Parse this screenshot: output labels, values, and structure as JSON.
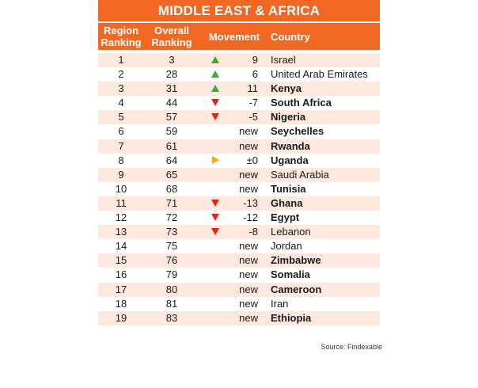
{
  "title": "MIDDLE EAST & AFRICA",
  "headers": {
    "region": "Region Ranking",
    "overall": "Overall Ranking",
    "movement": "Movement",
    "country": "Country"
  },
  "colors": {
    "accent": "#f26722",
    "row_shade": "#fde8dd",
    "up": "#3aaa35",
    "down": "#e2231a",
    "neutral": "#f5a623"
  },
  "rows": [
    {
      "region": "1",
      "overall": "3",
      "icon": "up",
      "movement": "9",
      "country": "Israel",
      "bold": false
    },
    {
      "region": "2",
      "overall": "28",
      "icon": "up",
      "movement": "6",
      "country": "United Arab Emirates",
      "bold": false
    },
    {
      "region": "3",
      "overall": "31",
      "icon": "up",
      "movement": "11",
      "country": "Kenya",
      "bold": true
    },
    {
      "region": "4",
      "overall": "44",
      "icon": "down",
      "movement": "-7",
      "country": "South Africa",
      "bold": true
    },
    {
      "region": "5",
      "overall": "57",
      "icon": "down",
      "movement": "-5",
      "country": "Nigeria",
      "bold": true
    },
    {
      "region": "6",
      "overall": "59",
      "icon": "",
      "movement": "new",
      "country": "Seychelles",
      "bold": true
    },
    {
      "region": "7",
      "overall": "61",
      "icon": "",
      "movement": "new",
      "country": "Rwanda",
      "bold": true
    },
    {
      "region": "8",
      "overall": "64",
      "icon": "neutral",
      "movement": "±0",
      "country": "Uganda",
      "bold": true
    },
    {
      "region": "9",
      "overall": "65",
      "icon": "",
      "movement": "new",
      "country": "Saudi Arabia",
      "bold": false
    },
    {
      "region": "10",
      "overall": "68",
      "icon": "",
      "movement": "new",
      "country": "Tunisia",
      "bold": true
    },
    {
      "region": "11",
      "overall": "71",
      "icon": "down",
      "movement": "-13",
      "country": "Ghana",
      "bold": true
    },
    {
      "region": "12",
      "overall": "72",
      "icon": "down",
      "movement": "-12",
      "country": "Egypt",
      "bold": true
    },
    {
      "region": "13",
      "overall": "73",
      "icon": "down",
      "movement": "-8",
      "country": "Lebanon",
      "bold": false
    },
    {
      "region": "14",
      "overall": "75",
      "icon": "",
      "movement": "new",
      "country": "Jordan",
      "bold": false
    },
    {
      "region": "15",
      "overall": "76",
      "icon": "",
      "movement": "new",
      "country": "Zimbabwe",
      "bold": true
    },
    {
      "region": "16",
      "overall": "79",
      "icon": "",
      "movement": "new",
      "country": "Somalia",
      "bold": true
    },
    {
      "region": "17",
      "overall": "80",
      "icon": "",
      "movement": "new",
      "country": "Cameroon",
      "bold": true
    },
    {
      "region": "18",
      "overall": "81",
      "icon": "",
      "movement": "new",
      "country": "Iran",
      "bold": false
    },
    {
      "region": "19",
      "overall": "83",
      "icon": "",
      "movement": "new",
      "country": "Ethiopia",
      "bold": true
    }
  ],
  "source": "Source: Findexable"
}
